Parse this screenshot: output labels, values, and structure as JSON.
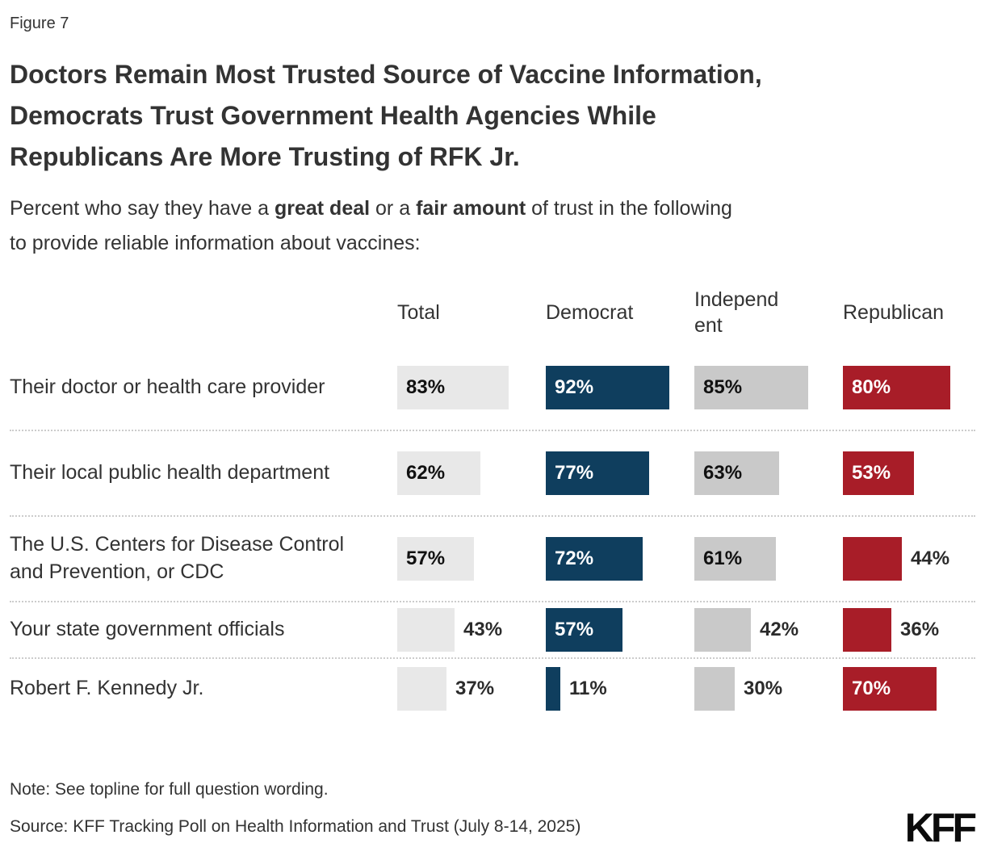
{
  "figure_label": "Figure 7",
  "title_lines": [
    "Doctors Remain Most Trusted Source of Vaccine Information,",
    "Democrats Trust Government Health Agencies While",
    "Republicans Are More Trusting of RFK Jr."
  ],
  "subtitle": {
    "pre": "Percent who say they have a ",
    "bold1": "great deal",
    "mid": " or a ",
    "bold2": "fair amount",
    "post": " of trust in the following",
    "line2": "to provide reliable information about vaccines:"
  },
  "note": "Note: See topline for full question wording.",
  "source": "Source: KFF Tracking Poll on Health Information and Trust (July 8-14, 2025)",
  "logo": "KFF",
  "colors": {
    "total_bar": "#E8E8E8",
    "democrat_bar": "#0F3E5E",
    "independent_bar": "#C9C9C9",
    "republican_bar": "#A81D28",
    "series": [
      "#E8E8E8",
      "#0F3E5E",
      "#C9C9C9",
      "#A81D28"
    ],
    "inside_text": [
      "#111111",
      "#FFFFFF",
      "#111111",
      "#FFFFFF"
    ],
    "outside_text": "#2b2b2b",
    "text": "#333333"
  },
  "chart_data": {
    "type": "bar",
    "orientation": "horizontal",
    "title": "Doctors Remain Most Trusted Source of Vaccine Information, Democrats Trust Government Health Agencies While Republicans Are More Trusting of RFK Jr.",
    "subtitle": "Percent who say they have a great deal or a fair amount of trust in the following to provide reliable information about vaccines:",
    "unit": "%",
    "xlim": [
      0,
      100
    ],
    "grid": false,
    "legend_position": "none",
    "categories": [
      "Total",
      "Democrat",
      "Independent",
      "Republican"
    ],
    "rows": [
      {
        "label": "Their doctor or health care provider",
        "values": [
          83,
          92,
          85,
          80
        ]
      },
      {
        "label": "Their local public health department",
        "values": [
          62,
          77,
          63,
          53
        ]
      },
      {
        "label": "The U.S. Centers for Disease Control and Prevention, or CDC",
        "values": [
          57,
          72,
          61,
          44
        ]
      },
      {
        "label": "Your state government officials",
        "values": [
          43,
          57,
          42,
          36
        ]
      },
      {
        "label": "Robert F. Kennedy Jr.",
        "values": [
          37,
          11,
          30,
          70
        ]
      }
    ]
  }
}
